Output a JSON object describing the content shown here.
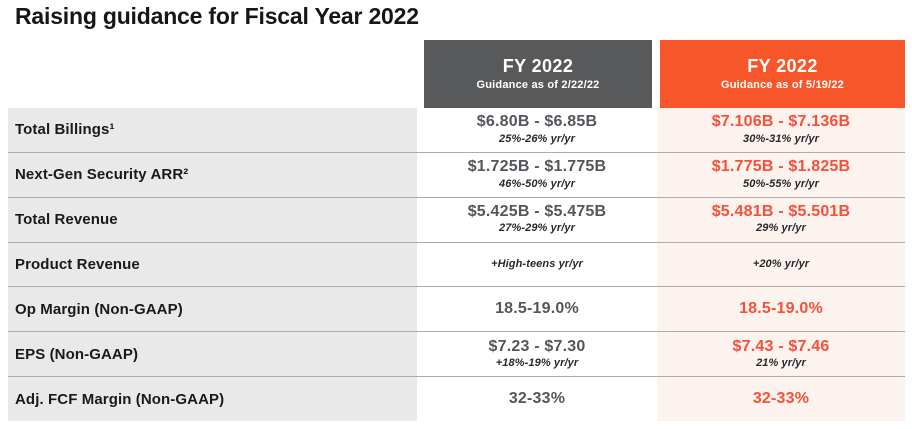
{
  "title": "Raising guidance for Fiscal Year 2022",
  "colors": {
    "accent_orange": "#F7562B",
    "accent_text_orange": "#F4513B",
    "header_gray": "#58595B",
    "label_column_bg": "#E9E9E9",
    "new_column_bg": "#FCF2EE",
    "value_gray": "#54565B"
  },
  "table": {
    "columns": [
      {
        "title": "FY 2022",
        "subtitle": "Guidance as of 2/22/22"
      },
      {
        "title": "FY 2022",
        "subtitle": "Guidance as of 5/19/22"
      }
    ],
    "rows": [
      {
        "label": "Total Billings¹",
        "prior_value": "$6.80B - $6.85B",
        "prior_sub": "25%-26% yr/yr",
        "new_value": "$7.106B - $7.136B",
        "new_sub": "30%-31% yr/yr"
      },
      {
        "label": "Next-Gen Security ARR²",
        "prior_value": "$1.725B - $1.775B",
        "prior_sub": "46%-50% yr/yr",
        "new_value": "$1.775B - $1.825B",
        "new_sub": "50%-55% yr/yr"
      },
      {
        "label": "Total Revenue",
        "prior_value": "$5.425B - $5.475B",
        "prior_sub": "27%-29% yr/yr",
        "new_value": "$5.481B - $5.501B",
        "new_sub": "29% yr/yr"
      },
      {
        "label": "Product Revenue",
        "prior_value": "",
        "prior_sub": "+High-teens yr/yr",
        "new_value": "",
        "new_sub": "+20% yr/yr"
      },
      {
        "label": "Op Margin (Non-GAAP)",
        "prior_value": "18.5-19.0%",
        "prior_sub": "",
        "new_value": "18.5-19.0%",
        "new_sub": ""
      },
      {
        "label": "EPS (Non-GAAP)",
        "prior_value": "$7.23 - $7.30",
        "prior_sub": "+18%-19% yr/yr",
        "new_value": "$7.43 - $7.46",
        "new_sub": "21% yr/yr"
      },
      {
        "label": "Adj. FCF Margin (Non-GAAP)",
        "prior_value": "32-33%",
        "prior_sub": "",
        "new_value": "32-33%",
        "new_sub": ""
      }
    ]
  }
}
